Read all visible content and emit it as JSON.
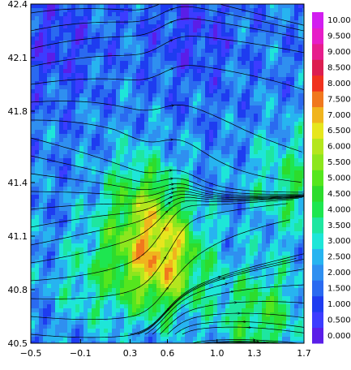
{
  "chart_data": {
    "type": "heatmap",
    "subtype": "filled-contour-with-streamlines",
    "title": "",
    "xlabel": "",
    "ylabel": "",
    "xlim": [
      -0.5,
      1.7
    ],
    "ylim": [
      40.5,
      42.4
    ],
    "x_ticks": [
      -0.5,
      -0.1,
      0.3,
      0.6,
      1.0,
      1.3,
      1.7
    ],
    "x_tick_labels": [
      "−0.5",
      "−0.1",
      "0.3",
      "0.6",
      "1.0",
      "1.3",
      "1.7"
    ],
    "y_ticks": [
      40.5,
      40.8,
      41.1,
      41.4,
      41.8,
      42.1,
      42.4
    ],
    "y_tick_labels": [
      "40.5",
      "40.8",
      "41.1",
      "41.4",
      "41.8",
      "42.1",
      "42.4"
    ],
    "colorbar": {
      "levels": [
        0.0,
        0.5,
        1.0,
        1.5,
        2.0,
        2.5,
        3.0,
        3.5,
        4.0,
        4.5,
        5.0,
        5.5,
        6.0,
        6.5,
        7.0,
        7.5,
        8.0,
        8.5,
        9.0,
        9.5,
        10.0
      ],
      "labels": [
        "0.000",
        "0.500",
        "1.000",
        "1.500",
        "2.000",
        "2.500",
        "3.000",
        "3.500",
        "4.000",
        "4.500",
        "5.000",
        "5.500",
        "6.000",
        "6.500",
        "7.000",
        "7.500",
        "8.000",
        "8.500",
        "9.000",
        "9.500",
        "10.00"
      ],
      "colors": [
        "#5a1ee8",
        "#3c3cff",
        "#1e3cf0",
        "#2a6af0",
        "#2f8ff0",
        "#27b4f0",
        "#1ee6d8",
        "#1ee6a0",
        "#1ee650",
        "#2ddc2d",
        "#55e61e",
        "#8ce61e",
        "#b4e61e",
        "#e6e61e",
        "#f0b41e",
        "#f0781e",
        "#f0321e",
        "#dc1e50",
        "#e61e8c",
        "#e61ec8",
        "#d21ef0"
      ]
    },
    "field_centers": [
      {
        "x": 0.55,
        "y": 40.95,
        "value": 6.5
      },
      {
        "x": 1.35,
        "y": 40.65,
        "value": 4.5
      },
      {
        "x": 0.0,
        "y": 40.85,
        "value": 3.5
      },
      {
        "x": -0.3,
        "y": 42.2,
        "value": 1.0
      },
      {
        "x": 0.8,
        "y": 42.25,
        "value": 1.0
      },
      {
        "x": 1.6,
        "y": 41.4,
        "value": 4.0
      },
      {
        "x": 0.4,
        "y": 41.3,
        "value": 4.5
      }
    ]
  }
}
